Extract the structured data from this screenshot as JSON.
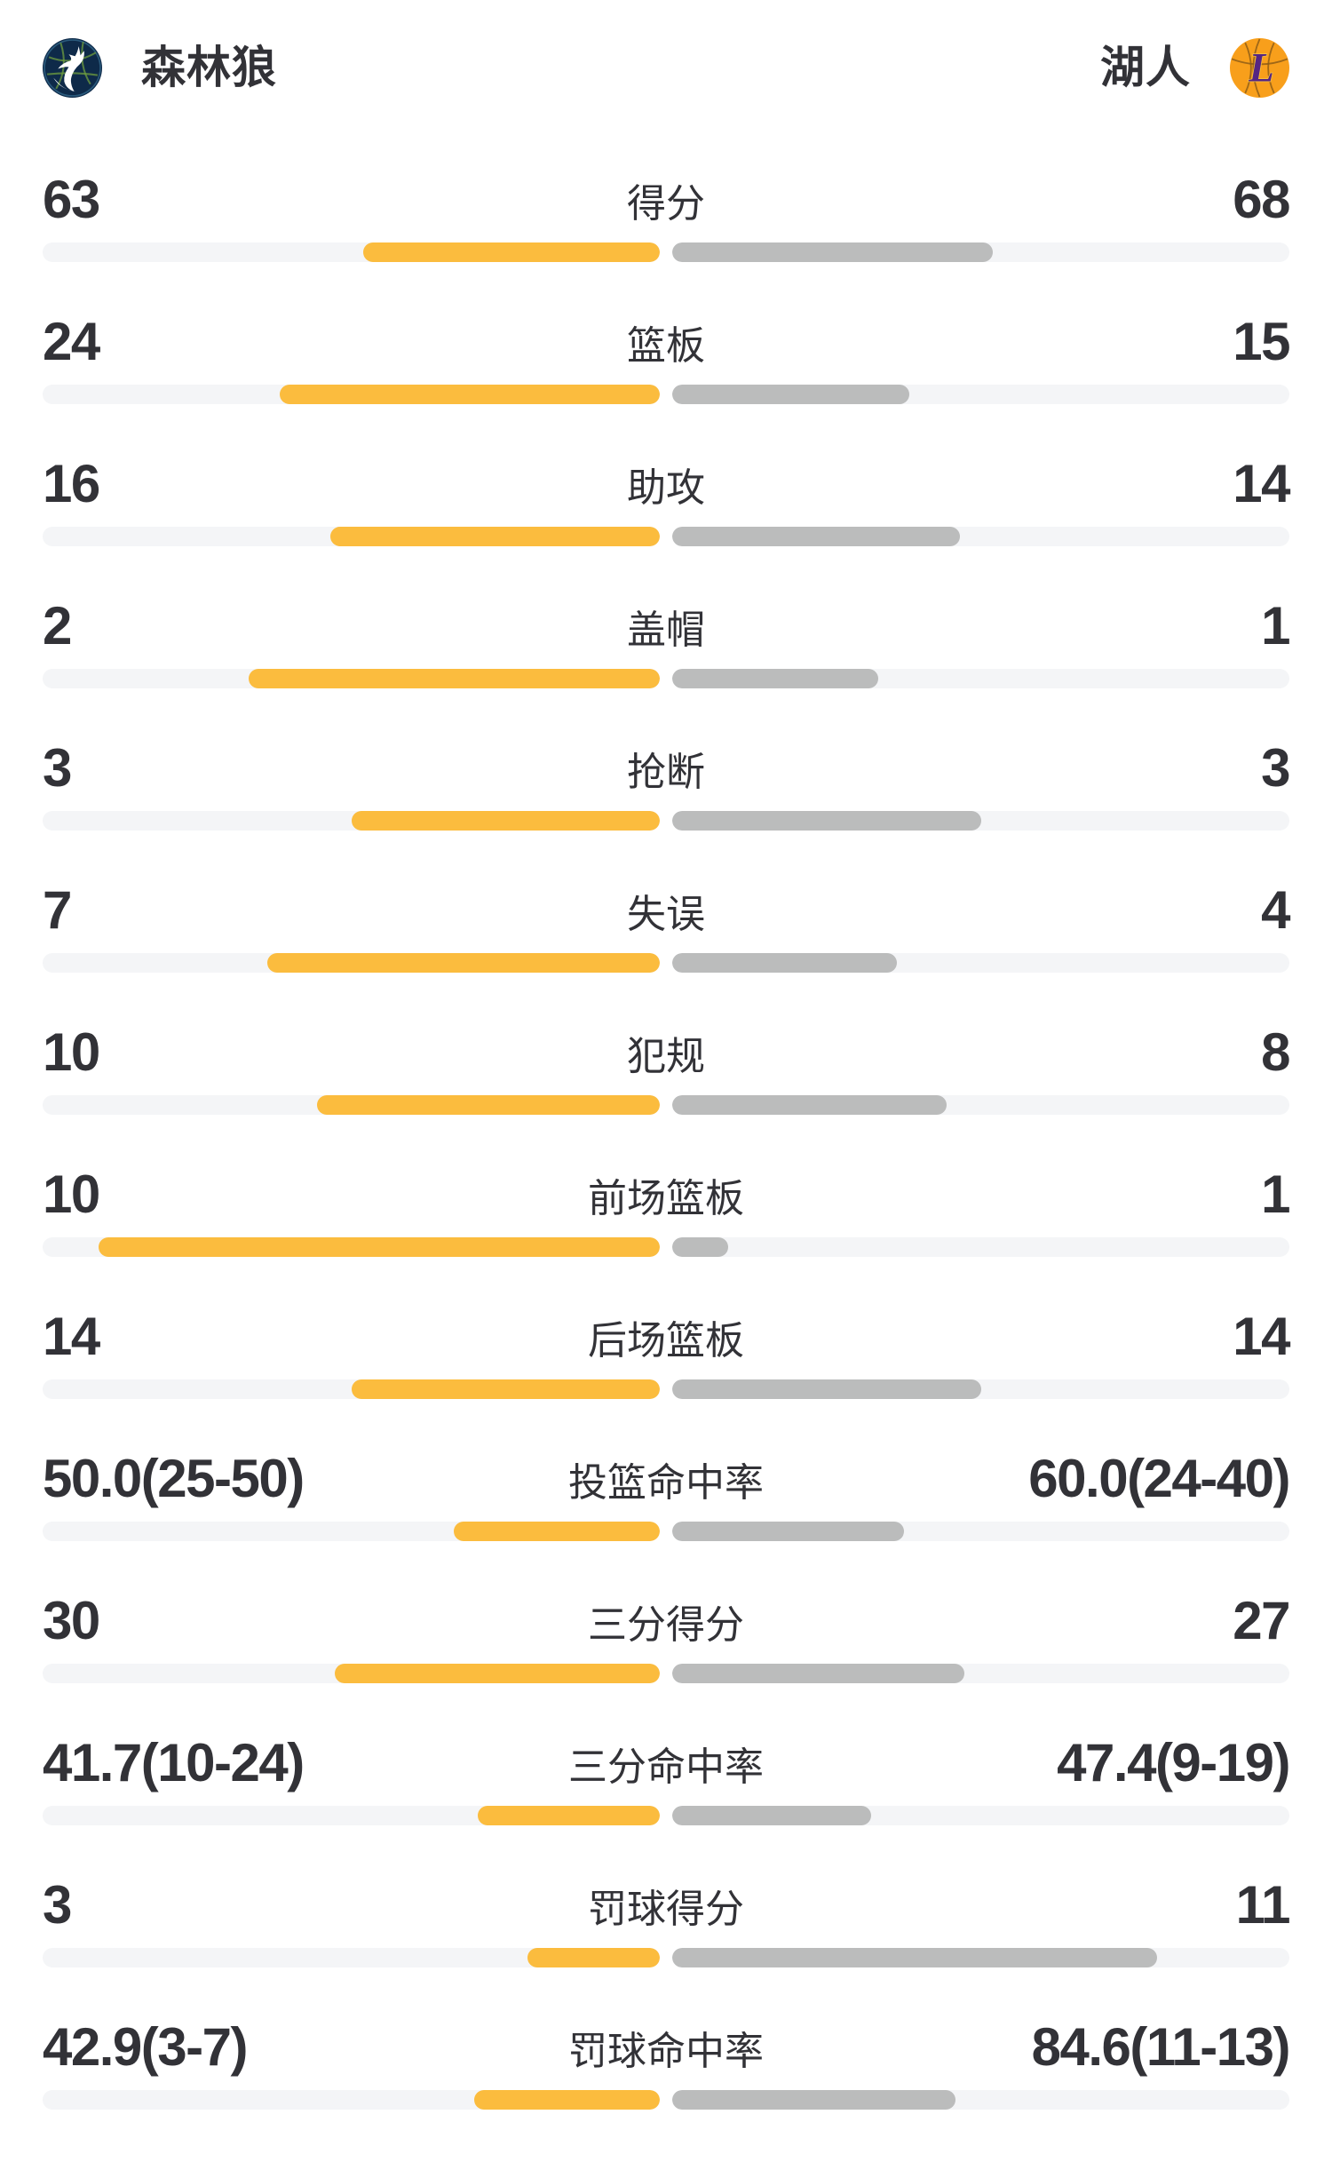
{
  "header": {
    "left_team": {
      "name": "森林狼",
      "logo_icon": "timberwolves-logo"
    },
    "right_team": {
      "name": "湖人",
      "logo_icon": "lakers-logo"
    }
  },
  "colors": {
    "left_bar": "#FBBC3E",
    "right_bar": "#BBBCBC",
    "bar_track": "#F4F5F7",
    "text": "#323237",
    "background": "#FFFFFF",
    "timberwolves_navy": "#0E2A49",
    "timberwolves_green": "#6F9D3F",
    "lakers_gold": "#F89F1B",
    "lakers_purple": "#552583"
  },
  "chart_data": {
    "type": "bar",
    "subtype": "bidirectional-team-comparison",
    "teams": [
      "森林狼",
      "湖人"
    ],
    "legend_position": "top-header",
    "grid": false,
    "bars_direction": "outward-from-center",
    "fill_rule": {
      "count": "value/(left+right)",
      "percent": "value/(value+100)"
    },
    "rows": [
      {
        "label": "得分",
        "kind": "count",
        "left_display": "63",
        "right_display": "68",
        "left_value": 63,
        "right_value": 68
      },
      {
        "label": "篮板",
        "kind": "count",
        "left_display": "24",
        "right_display": "15",
        "left_value": 24,
        "right_value": 15
      },
      {
        "label": "助攻",
        "kind": "count",
        "left_display": "16",
        "right_display": "14",
        "left_value": 16,
        "right_value": 14
      },
      {
        "label": "盖帽",
        "kind": "count",
        "left_display": "2",
        "right_display": "1",
        "left_value": 2,
        "right_value": 1
      },
      {
        "label": "抢断",
        "kind": "count",
        "left_display": "3",
        "right_display": "3",
        "left_value": 3,
        "right_value": 3
      },
      {
        "label": "失误",
        "kind": "count",
        "left_display": "7",
        "right_display": "4",
        "left_value": 7,
        "right_value": 4
      },
      {
        "label": "犯规",
        "kind": "count",
        "left_display": "10",
        "right_display": "8",
        "left_value": 10,
        "right_value": 8
      },
      {
        "label": "前场篮板",
        "kind": "count",
        "left_display": "10",
        "right_display": "1",
        "left_value": 10,
        "right_value": 1
      },
      {
        "label": "后场篮板",
        "kind": "count",
        "left_display": "14",
        "right_display": "14",
        "left_value": 14,
        "right_value": 14
      },
      {
        "label": "投篮命中率",
        "kind": "percent",
        "left_display": "50.0(25-50)",
        "right_display": "60.0(24-40)",
        "left_value": 50.0,
        "right_value": 60.0
      },
      {
        "label": "三分得分",
        "kind": "count",
        "left_display": "30",
        "right_display": "27",
        "left_value": 30,
        "right_value": 27
      },
      {
        "label": "三分命中率",
        "kind": "percent",
        "left_display": "41.7(10-24)",
        "right_display": "47.4(9-19)",
        "left_value": 41.7,
        "right_value": 47.4
      },
      {
        "label": "罚球得分",
        "kind": "count",
        "left_display": "3",
        "right_display": "11",
        "left_value": 3,
        "right_value": 11
      },
      {
        "label": "罚球命中率",
        "kind": "percent",
        "left_display": "42.9(3-7)",
        "right_display": "84.6(11-13)",
        "left_value": 42.9,
        "right_value": 84.6
      }
    ]
  }
}
